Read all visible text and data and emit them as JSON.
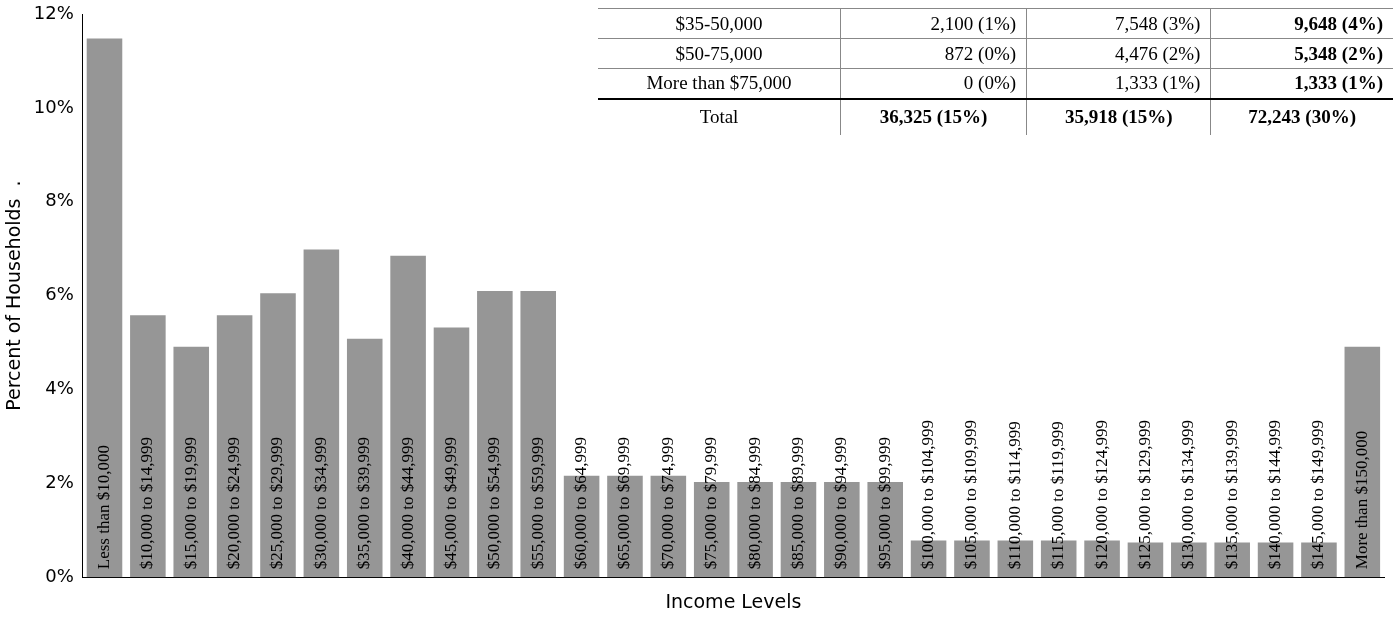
{
  "chart_data": {
    "type": "bar",
    "xlabel": "Income Levels",
    "ylabel": "Percent of Households  .",
    "categories": [
      "Less than $10,000",
      "$10,000 to $14,999",
      "$15,000 to $19,999",
      "$20,000 to $24,999",
      "$25,000 to $29,999",
      "$30,000 to $34,999",
      "$35,000 to $39,999",
      "$40,000 to $44,999",
      "$45,000 to $49,999",
      "$50,000 to $54,999",
      "$55,000 to $59,999",
      "$60,000 to $64,999",
      "$65,000 to $69,999",
      "$70,000 to $74,999",
      "$75,000 to $79,999",
      "$80,000 to $84,999",
      "$85,000 to $89,999",
      "$90,000 to $94,999",
      "$95,000 to $99,999",
      "$100,000 to $104,999",
      "$105,000 to $109,999",
      "$110,000 to $114,999",
      "$115,000 to $119,999",
      "$120,000 to $124,999",
      "$125,000 to $129,999",
      "$130,000 to $134,999",
      "$135,000 to $139,999",
      "$140,000 to $144,999",
      "$145,000 to $149,999",
      "More than $150,000"
    ],
    "values": [
      11.48,
      5.58,
      4.91,
      5.58,
      6.05,
      6.98,
      5.08,
      6.85,
      5.32,
      6.1,
      6.1,
      2.16,
      2.16,
      2.16,
      2.03,
      2.03,
      2.03,
      2.03,
      2.03,
      0.78,
      0.78,
      0.78,
      0.78,
      0.78,
      0.74,
      0.74,
      0.74,
      0.74,
      0.74,
      4.91
    ],
    "color": "#969696",
    "ylim": [
      0,
      12
    ],
    "yticks": [
      {
        "value": 0,
        "label": "0%"
      },
      {
        "value": 2,
        "label": "2%"
      },
      {
        "value": 4,
        "label": "4%"
      },
      {
        "value": 6,
        "label": "6%"
      },
      {
        "value": 8,
        "label": "8%"
      },
      {
        "value": 10,
        "label": "10%"
      },
      {
        "value": 12,
        "label": "12%"
      }
    ],
    "grid": false,
    "legend": false,
    "annotations": [
      "$35-50,000",
      "2,100 (1%)",
      "7,548 (3%)",
      "9,648 (4%)",
      "$50-75,000",
      "872 (0%)",
      "4,476 (2%)",
      "5,348 (2%)",
      "More than $75,000",
      "0 (0%)",
      "1,333 (1%)",
      "1,333 (1%)",
      "Total",
      "36,325 (15%)",
      "35,918 (15%)",
      "72,243 (30%)"
    ]
  }
}
